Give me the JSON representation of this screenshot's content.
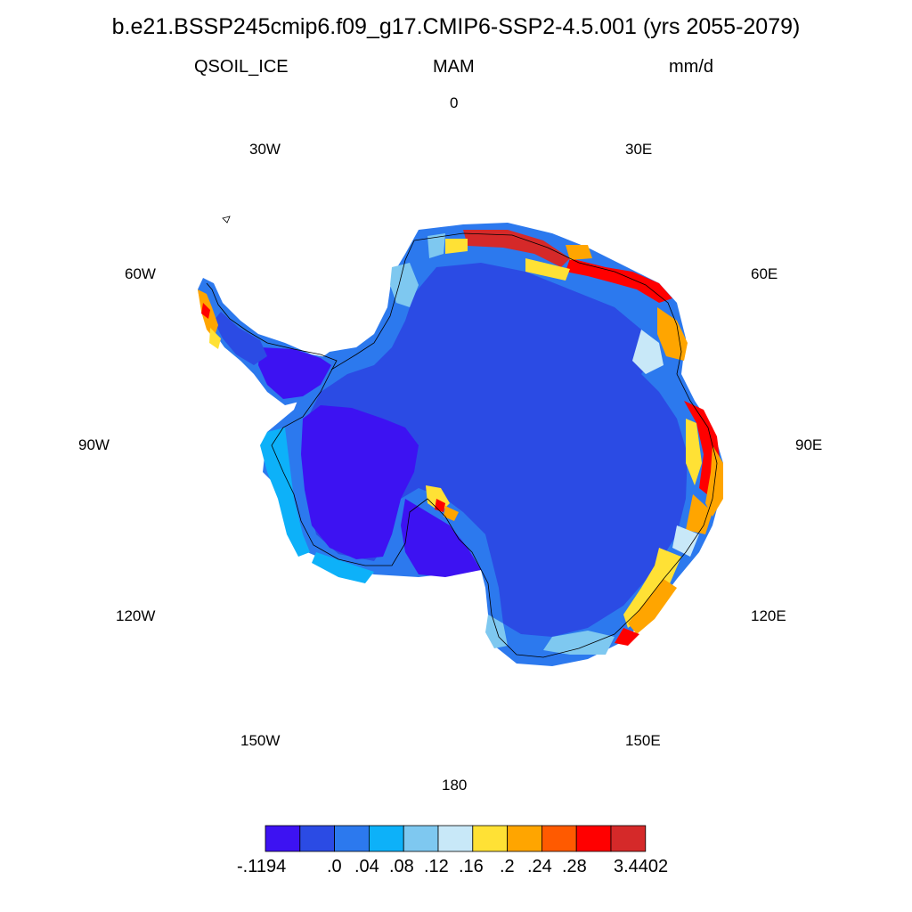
{
  "title": "b.e21.BSSP245cmip6.f09_g17.CMIP6-SSP2-4.5.001 (yrs 2055-2079)",
  "variable": "QSOIL_ICE",
  "season": "MAM",
  "units": "mm/d",
  "lon_labels": {
    "l0": "0",
    "l30e": "30E",
    "l60e": "60E",
    "l90e": "90E",
    "l120e": "120E",
    "l150e": "150E",
    "l180": "180",
    "l150w": "150W",
    "l120w": "120W",
    "l90w": "90W",
    "l60w": "60W",
    "l30w": "30W"
  },
  "colorbar": {
    "colors": [
      "#3d12f2",
      "#2b4be4",
      "#2c79ee",
      "#0db1f9",
      "#7ec8f0",
      "#c8e8f8",
      "#ffe135",
      "#ffa500",
      "#ff5a00",
      "#ff0000",
      "#d52929"
    ],
    "labels": [
      "-.1194",
      ".0",
      ".04",
      ".08",
      ".12",
      ".16",
      ".2",
      ".24",
      ".28",
      "3.4402"
    ]
  },
  "map_colors": {
    "interior": "#2b4be4",
    "west_low": "#3d12f2",
    "coast_blue": "#2c79ee",
    "coast_cyan": "#0db1f9",
    "coast_light": "#7ec8f0",
    "coast_pale": "#c8e8f8",
    "coast_yellow": "#ffe135",
    "coast_orange": "#ffa500",
    "coast_dkorange": "#ff5a00",
    "coast_red": "#ff0000",
    "coast_dkred": "#d52929",
    "coastline": "#000000"
  }
}
